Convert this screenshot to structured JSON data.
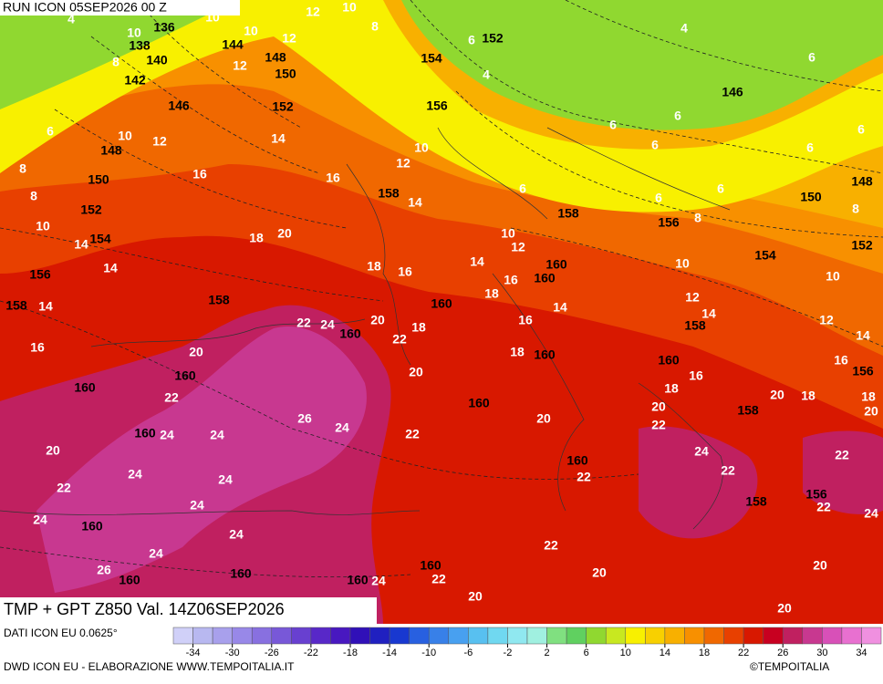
{
  "header": {
    "run": "RUN ICON 05SEP2026 00 Z"
  },
  "title": "TMP + GPT Z850 Val. 14Z06SEP2026",
  "source": "DATI ICON EU 0.0625°",
  "footer_left": "DWD ICON EU - ELABORAZIONE WWW.TEMPOITALIA.IT",
  "footer_right": "©TEMPOITALIA",
  "colorbar": {
    "range": [
      -36,
      36
    ],
    "ticks": [
      -34,
      -30,
      -26,
      -22,
      -18,
      -14,
      -10,
      -6,
      -2,
      2,
      6,
      10,
      14,
      18,
      22,
      26,
      30,
      34
    ],
    "colors": [
      "#d0d0f8",
      "#b8b8f0",
      "#a8a0ec",
      "#9888e8",
      "#8870e0",
      "#7858d8",
      "#6840d0",
      "#5828c8",
      "#4818c0",
      "#3010b8",
      "#2020c0",
      "#1838d0",
      "#2860e0",
      "#3880e8",
      "#48a0f0",
      "#58c0f0",
      "#70d8f0",
      "#90e8f0",
      "#a0f0e0",
      "#80e080",
      "#60d060",
      "#90d830",
      "#c8e820",
      "#f8f000",
      "#f8d000",
      "#f8b000",
      "#f89000",
      "#f06800",
      "#e84000",
      "#d81800",
      "#c80020",
      "#c02060",
      "#c83890",
      "#d850b8",
      "#e870d0",
      "#f090e0"
    ]
  },
  "map": {
    "temperature_labels": [
      10,
      12,
      10,
      8,
      10,
      10,
      12,
      8,
      12,
      6,
      4,
      6,
      10,
      12,
      8,
      8,
      10,
      14,
      14,
      14,
      16,
      16,
      10,
      12,
      14,
      6,
      10,
      12,
      14,
      18,
      20,
      18,
      16,
      14,
      16,
      22,
      24,
      20,
      18,
      22,
      18,
      16,
      16,
      14,
      18,
      20,
      22,
      26,
      24,
      20,
      22,
      24,
      24,
      20,
      24,
      24,
      22,
      24,
      24,
      24,
      24,
      26,
      24,
      22,
      20,
      22,
      20,
      20,
      22,
      20,
      22,
      24,
      22,
      20,
      18,
      22,
      24,
      22,
      20,
      20,
      16,
      18,
      10,
      12,
      14,
      12,
      10,
      14,
      16,
      18,
      20,
      6,
      6,
      6,
      8,
      6,
      6,
      4,
      6,
      6,
      6,
      8,
      4
    ],
    "geopotential_labels": [
      136,
      138,
      144,
      140,
      148,
      142,
      150,
      146,
      152,
      148,
      150,
      152,
      154,
      156,
      158,
      158,
      158,
      152,
      154,
      156,
      146,
      148,
      150,
      152,
      158,
      156,
      154,
      160,
      160,
      160,
      160,
      160,
      160,
      158,
      156,
      160,
      160,
      160,
      158,
      160,
      160,
      158,
      156,
      160,
      160,
      160,
      160,
      160
    ]
  }
}
